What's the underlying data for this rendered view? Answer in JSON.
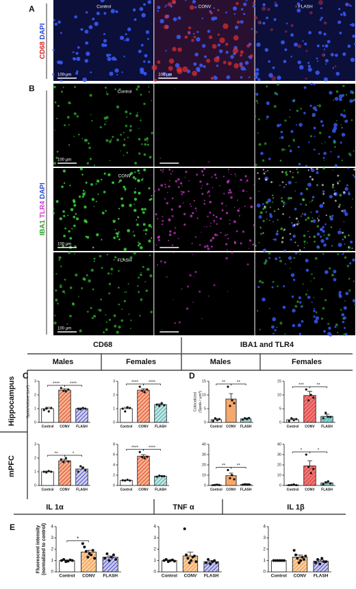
{
  "panel_a": {
    "letter": "A",
    "stain": [
      "CD68",
      "DAPI"
    ],
    "columns": [
      "Control",
      "CONV",
      "FLASH"
    ],
    "scale_bars": [
      "100 µm",
      "100 µm"
    ]
  },
  "panel_b": {
    "letter": "B",
    "stain": [
      "IBA1",
      "TLR4",
      "DAPI"
    ],
    "rows": [
      "Control",
      "CONV",
      "FLASH"
    ],
    "scale_bar": "100 µm"
  },
  "header": {
    "groups": [
      "CD68",
      "IBA1 and TLR4"
    ],
    "sexes": [
      "Males",
      "Females",
      "Males",
      "Females"
    ],
    "regions": [
      "Hippocampus",
      "mPFC"
    ]
  },
  "panel_c": {
    "letter": "C"
  },
  "panel_d": {
    "letter": "D"
  },
  "panel_e": {
    "letter": "E"
  },
  "cytokines": [
    "IL 1α",
    "TNF α",
    "IL 1β"
  ],
  "chart_data": [
    {
      "type": "bar",
      "ylabel": [
        "Spots/volume (um³)"
      ],
      "categories": [
        "Control",
        "CONV",
        "FLASH"
      ],
      "values": [
        1.0,
        2.35,
        1.0
      ],
      "errors": [
        0.1,
        0.1,
        0.05
      ],
      "points": [
        [
          0.9,
          1.0,
          0.8,
          1.05
        ],
        [
          2.5,
          2.3,
          2.25,
          2.4
        ],
        [
          1.0,
          0.95,
          1.05,
          1.0
        ]
      ],
      "ylim": [
        0,
        3
      ],
      "yticks": [
        0,
        1,
        2,
        3
      ],
      "colors": [
        "#ffffff",
        "#f7b48a",
        "#cfcff0"
      ],
      "hatch_colors": [
        "#ffffff",
        "#d62728",
        "#2a2ab0"
      ],
      "significance": [
        {
          "pair": [
            0,
            1
          ],
          "label": "****"
        },
        {
          "pair": [
            1,
            2
          ],
          "label": "****"
        }
      ]
    },
    {
      "type": "bar",
      "categories": [
        "Control",
        "CONV",
        "FLASH"
      ],
      "values": [
        1.0,
        2.35,
        1.3
      ],
      "errors": [
        0.1,
        0.1,
        0.05
      ],
      "points": [
        [
          1.0,
          0.8,
          1.1,
          1.05
        ],
        [
          2.6,
          2.3,
          2.2,
          2.4
        ],
        [
          1.3,
          1.2,
          1.4,
          1.25
        ]
      ],
      "ylim": [
        0,
        3
      ],
      "yticks": [
        0,
        1,
        2,
        3
      ],
      "colors": [
        "#ffffff",
        "#f7b48a",
        "#bfe6e6"
      ],
      "hatch_colors": [
        "#ffffff",
        "#d62728",
        "#2a9a9a"
      ],
      "significance": [
        {
          "pair": [
            0,
            1
          ],
          "label": "****"
        },
        {
          "pair": [
            1,
            2
          ],
          "label": "****"
        }
      ]
    },
    {
      "type": "bar",
      "ylabel": [
        "Colocalized",
        "(Spots / µm³)"
      ],
      "categories": [
        "Control",
        "CONV",
        "FLASH"
      ],
      "values": [
        1.0,
        8.5,
        1.3
      ],
      "errors": [
        0.4,
        2.0,
        0.3
      ],
      "points": [
        [
          0.5,
          1.5,
          0.8,
          1.2
        ],
        [
          13,
          6,
          8,
          7
        ],
        [
          1.0,
          1.5,
          1.2,
          1.6
        ]
      ],
      "ylim": [
        0,
        15
      ],
      "yticks": [
        0,
        5,
        10,
        15
      ],
      "colors": [
        "#ffffff",
        "#f5a86b",
        "#8fd0d0"
      ],
      "hatch_colors": [
        "#ffffff",
        "#f5a86b",
        "#8fd0d0"
      ],
      "significance": [
        {
          "pair": [
            0,
            1
          ],
          "label": "**"
        },
        {
          "pair": [
            1,
            2
          ],
          "label": "**"
        }
      ]
    },
    {
      "type": "bar",
      "categories": [
        "Control",
        "CONV",
        "FLASH"
      ],
      "values": [
        1.0,
        9.8,
        2.2
      ],
      "errors": [
        0.4,
        1.5,
        0.8
      ],
      "points": [
        [
          0.5,
          1.5,
          0.8,
          1.2
        ],
        [
          12,
          8,
          10,
          9
        ],
        [
          1.5,
          3.5,
          2,
          2
        ]
      ],
      "ylim": [
        0,
        15
      ],
      "yticks": [
        0,
        5,
        10,
        15
      ],
      "colors": [
        "#ffffff",
        "#f07878",
        "#8fd0d0"
      ],
      "hatch_colors": [
        "#ffffff",
        "#d62728",
        "#2a9a9a"
      ],
      "significance": [
        {
          "pair": [
            0,
            1
          ],
          "label": "***"
        },
        {
          "pair": [
            1,
            2
          ],
          "label": "**"
        }
      ]
    },
    {
      "type": "bar",
      "categories": [
        "Control",
        "CONV",
        "FLASH"
      ],
      "values": [
        1.0,
        1.8,
        1.2
      ],
      "errors": [
        0.05,
        0.1,
        0.15
      ],
      "points": [
        [
          1.0,
          0.95,
          1.05,
          1.0
        ],
        [
          1.9,
          1.7,
          2.0,
          1.75
        ],
        [
          1.0,
          1.4,
          1.3,
          1.1
        ]
      ],
      "ylim": [
        0,
        3
      ],
      "yticks": [
        0,
        1,
        2,
        3
      ],
      "colors": [
        "#ffffff",
        "#f7b48a",
        "#cfcff0"
      ],
      "hatch_colors": [
        "#ffffff",
        "#d62728",
        "#2a2ab0"
      ],
      "significance": [
        {
          "pair": [
            0,
            1
          ],
          "label": "**"
        },
        {
          "pair": [
            1,
            2
          ],
          "label": "*"
        }
      ]
    },
    {
      "type": "bar",
      "categories": [
        "Control",
        "CONV",
        "FLASH"
      ],
      "values": [
        1.0,
        5.7,
        1.8
      ],
      "errors": [
        0.05,
        0.3,
        0.1
      ],
      "points": [
        [
          1.0,
          0.95,
          1.1,
          0.95
        ],
        [
          6.5,
          5.5,
          5.3,
          5.6
        ],
        [
          1.7,
          1.9,
          1.8,
          1.8
        ]
      ],
      "ylim": [
        0,
        8
      ],
      "yticks": [
        0,
        2,
        4,
        6,
        8
      ],
      "colors": [
        "#ffffff",
        "#f7b48a",
        "#bfe6e6"
      ],
      "hatch_colors": [
        "#ffffff",
        "#d62728",
        "#2a9a9a"
      ],
      "significance": [
        {
          "pair": [
            0,
            1
          ],
          "label": "****"
        },
        {
          "pair": [
            1,
            2
          ],
          "label": "****"
        }
      ]
    },
    {
      "type": "bar",
      "categories": [
        "Control",
        "CONV",
        "FLASH"
      ],
      "values": [
        0.5,
        9.5,
        1.0
      ],
      "errors": [
        0.2,
        2.5,
        0.2
      ],
      "points": [
        [
          0.3,
          0.5,
          0.8,
          0.4
        ],
        [
          15,
          7,
          10,
          6
        ],
        [
          0.8,
          1.2,
          1.0,
          1.1
        ]
      ],
      "ylim": [
        0,
        40
      ],
      "yticks": [
        0,
        10,
        20,
        30,
        40
      ],
      "colors": [
        "#ffffff",
        "#f5a86b",
        "#8fd0d0"
      ],
      "hatch_colors": [
        "#ffffff",
        "#f5a86b",
        "#8fd0d0"
      ],
      "significance": [
        {
          "pair": [
            0,
            1
          ],
          "label": "**"
        },
        {
          "pair": [
            1,
            2
          ],
          "label": "**"
        }
      ]
    },
    {
      "type": "bar",
      "categories": [
        "Control",
        "CONV",
        "FLASH"
      ],
      "values": [
        0.5,
        19,
        2.5
      ],
      "errors": [
        0.3,
        5,
        1.0
      ],
      "points": [
        [
          0.3,
          0.5,
          1,
          0.3
        ],
        [
          30,
          18,
          12,
          16
        ],
        [
          1,
          3,
          4,
          2
        ]
      ],
      "ylim": [
        0,
        40
      ],
      "yticks": [
        0,
        10,
        20,
        30,
        40
      ],
      "colors": [
        "#ffffff",
        "#f07878",
        "#8fd0d0"
      ],
      "hatch_colors": [
        "#ffffff",
        "#d62728",
        "#2a9a9a"
      ],
      "significance": [
        {
          "pair": [
            0,
            1
          ],
          "label": "*"
        },
        {
          "pair": [
            1,
            2
          ],
          "label": "*"
        }
      ]
    },
    {
      "type": "bar",
      "ylabel": [
        "Fluorescent intensity",
        "(normalized to control)"
      ],
      "categories": [
        "Control",
        "CONV",
        "FLASH"
      ],
      "values": [
        1.0,
        1.75,
        1.3
      ],
      "errors": [
        0.05,
        0.15,
        0.1
      ],
      "points": [
        [
          1,
          1.1,
          0.9,
          0.95,
          1.05,
          1
        ],
        [
          2.5,
          2.2,
          1.8,
          1.3,
          1.6,
          1.5,
          1.9,
          1.2
        ],
        [
          1.2,
          1.6,
          1.0,
          1.3,
          1.5,
          1.1
        ]
      ],
      "ylim": [
        0,
        4
      ],
      "yticks": [
        0,
        1,
        2,
        3,
        4
      ],
      "colors": [
        "#ffffff",
        "#f5b06b",
        "#c8c8f0"
      ],
      "hatch_colors": [
        "#ffffff",
        "#ffffff",
        "#2a2ab0"
      ],
      "significance": [
        {
          "pair": [
            0,
            1
          ],
          "label": "*"
        }
      ]
    },
    {
      "type": "bar",
      "categories": [
        "Control",
        "CONV",
        "FLASH"
      ],
      "values": [
        1.0,
        1.4,
        0.9
      ],
      "errors": [
        0.05,
        0.35,
        0.1
      ],
      "points": [
        [
          1,
          1.1,
          0.9,
          1.0,
          1.05,
          0.95
        ],
        [
          3.8,
          1.5,
          1.2,
          0.8,
          1.0,
          1.3,
          1.4,
          0.9
        ],
        [
          0.8,
          1.1,
          0.7,
          0.9,
          1.0,
          0.8
        ]
      ],
      "ylim": [
        0,
        4
      ],
      "yticks": [
        0,
        1,
        2,
        3,
        4
      ],
      "colors": [
        "#ffffff",
        "#f5b06b",
        "#c8c8f0"
      ],
      "hatch_colors": [
        "#ffffff",
        "#ffffff",
        "#2a2ab0"
      ],
      "significance": []
    },
    {
      "type": "bar",
      "categories": [
        "Control",
        "CONV",
        "FLASH"
      ],
      "values": [
        1.0,
        1.3,
        0.95
      ],
      "errors": [
        0.02,
        0.2,
        0.1
      ],
      "points": [
        [
          1,
          1.0,
          1.0,
          1.0,
          1.0,
          1.0
        ],
        [
          1.9,
          1.5,
          1.2,
          0.8,
          1.0,
          1.3,
          1.1,
          1.4
        ],
        [
          0.8,
          1.1,
          0.7,
          1.2,
          0.9,
          0.9
        ]
      ],
      "ylim": [
        0,
        4
      ],
      "yticks": [
        0,
        1,
        2,
        3,
        4
      ],
      "colors": [
        "#ffffff",
        "#f5b06b",
        "#c8c8f0"
      ],
      "hatch_colors": [
        "#ffffff",
        "#ffffff",
        "#2a2ab0"
      ],
      "significance": []
    }
  ]
}
